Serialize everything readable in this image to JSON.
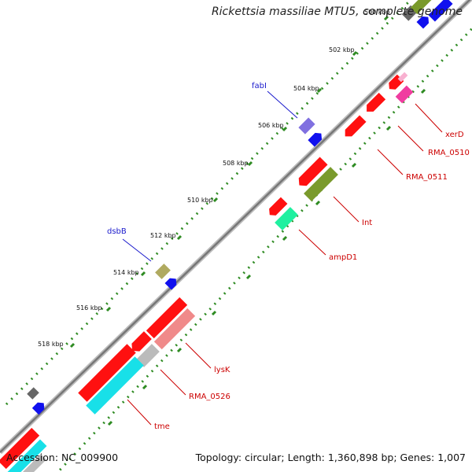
{
  "title": "Rickettsia massiliae MTU5, complete genome",
  "footer": {
    "accession": "Accession: NC_009900",
    "summary": "Topology: circular; Length: 1,360,898 bp; Genes: 1,007"
  },
  "ticks": [
    "500 kbp",
    "502 kbp",
    "504 kbp",
    "506 kbp",
    "508 kbp",
    "510 kbp",
    "512 kbp",
    "514 kbp",
    "516 kbp",
    "518 kbp"
  ],
  "gene_labels": {
    "fabI": "fabI",
    "dsbB": "dsbB",
    "xerD": "xerD",
    "rma0510": "RMA_0510",
    "rma0511": "RMA_0511",
    "int": "Int",
    "ampD1": "ampD1",
    "lysK": "lysK",
    "rma0526": "RMA_0526",
    "tme": "tme"
  },
  "colors": {
    "backbone": "#888888",
    "dots": "#2e8b22",
    "forward_label": "#1a1acc",
    "reverse_label": "#cc0000",
    "red": "#ff1010",
    "blue": "#1010ee",
    "gray": "#666666",
    "olive_green": "#7a9a2c",
    "pink": "#f03ca0",
    "mint": "#20f0a0",
    "salmon": "#f08a8a",
    "light_gray": "#bbbbbb",
    "cyan": "#18e0e8",
    "purple": "#8070e0",
    "khaki": "#b0aa60"
  }
}
